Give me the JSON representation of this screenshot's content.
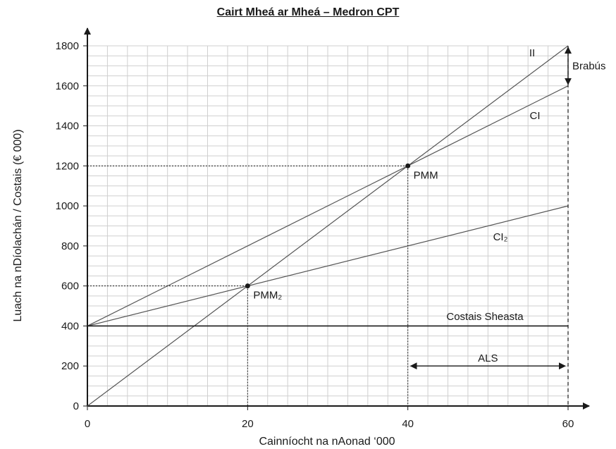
{
  "chart_data": {
    "type": "line",
    "title": "Cairt Mheá ar Mheá – Medron CPT",
    "xlabel": "Cainníocht na nAonad ‘000",
    "ylabel": "Luach na nDíolachán / Costais (€ 000)",
    "xlim": [
      0,
      60
    ],
    "ylim": [
      0,
      1800
    ],
    "x_ticks": [
      "0",
      "20",
      "40",
      "60"
    ],
    "y_ticks": [
      "0",
      "200",
      "400",
      "600",
      "800",
      "1000",
      "1200",
      "1400",
      "1600",
      "1800"
    ],
    "grid": true,
    "series": [
      {
        "name": "II",
        "x": [
          0,
          60
        ],
        "y": [
          0,
          1800
        ]
      },
      {
        "name": "CI",
        "x": [
          0,
          60
        ],
        "y": [
          400,
          1600
        ]
      },
      {
        "name": "CI₂",
        "x": [
          0,
          60
        ],
        "y": [
          400,
          1000
        ]
      },
      {
        "name": "Costais Sheasta",
        "x": [
          0,
          60
        ],
        "y": [
          400,
          400
        ]
      }
    ],
    "points": [
      {
        "name": "PMM",
        "x": 40,
        "y": 1200
      },
      {
        "name": "PMM₂",
        "x": 20,
        "y": 600
      }
    ],
    "annotations": {
      "profit": "Brabús",
      "margin_of_safety": "ALS"
    },
    "colors": {
      "lines": "#555555",
      "fixed_cost": "#1a1a1a",
      "grid": "#cfcfcf"
    }
  }
}
